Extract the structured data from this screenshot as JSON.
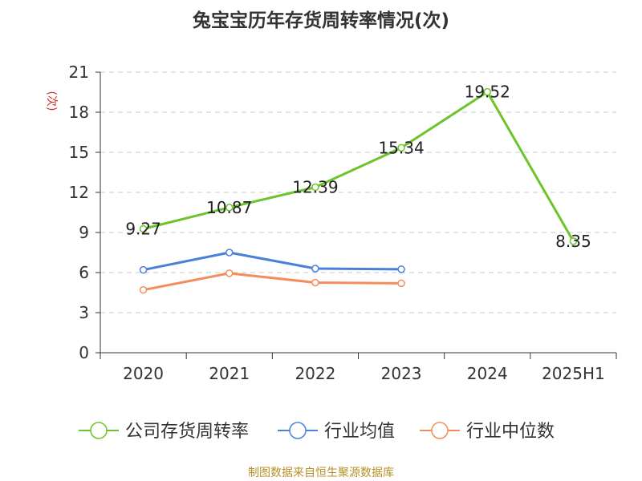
{
  "title": "兔宝宝历年存货周转率情况(次)",
  "footer": "制图数据来自恒生聚源数据库",
  "chart_data": {
    "type": "line",
    "title": "兔宝宝历年存货周转率情况(次)",
    "xlabel": "",
    "ylabel": "(次)",
    "categories": [
      "2020",
      "2021",
      "2022",
      "2023",
      "2024",
      "2025H1"
    ],
    "ylim": [
      0,
      21
    ],
    "yticks": [
      0,
      3,
      6,
      9,
      12,
      15,
      18,
      21
    ],
    "grid": true,
    "legend_position": "bottom",
    "series": [
      {
        "name": "公司存货周转率",
        "color": "#6cc42a",
        "values": [
          9.27,
          10.87,
          12.39,
          15.34,
          19.52,
          8.35
        ],
        "labels": true
      },
      {
        "name": "行业均值",
        "color": "#4a80d9",
        "values": [
          6.2,
          7.5,
          6.3,
          6.25,
          null,
          null
        ],
        "labels": false
      },
      {
        "name": "行业中位数",
        "color": "#f38d5c",
        "values": [
          4.7,
          5.95,
          5.25,
          5.2,
          null,
          null
        ],
        "labels": false
      }
    ]
  }
}
